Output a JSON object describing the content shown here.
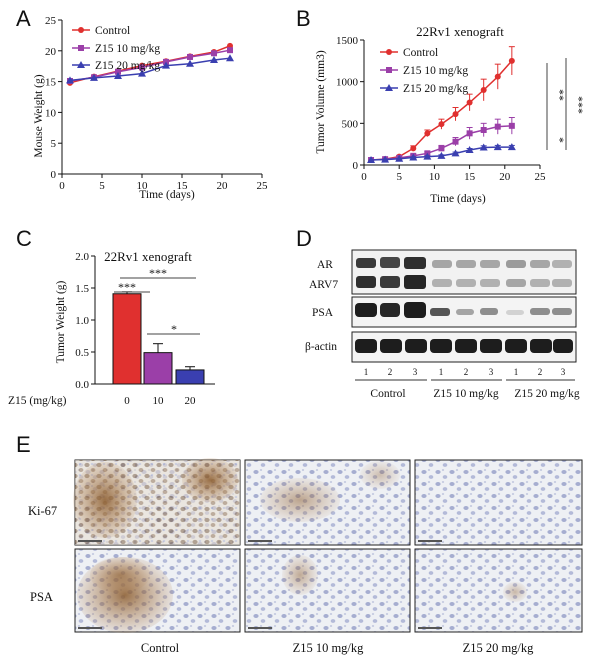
{
  "figure_panels": {
    "A": "A",
    "B": "B",
    "C": "C",
    "D": "D",
    "E": "E"
  },
  "legend": {
    "control": "Control",
    "z15_10": "Z15 10 mg/kg",
    "z15_20": "Z15 20 mg/kg"
  },
  "colors": {
    "control": "#e0302f",
    "z15_10": "#9b3fa8",
    "z15_20": "#3a3fb0"
  },
  "chart_data": [
    {
      "id": "A",
      "type": "line",
      "title": "",
      "xlabel": "Time (days)",
      "ylabel": "Mouse Weight (g)",
      "xlim": [
        0,
        25
      ],
      "ylim": [
        0,
        25
      ],
      "xticks": [
        "0",
        "5",
        "10",
        "15",
        "20",
        "25"
      ],
      "yticks": [
        "0",
        "5",
        "10",
        "15",
        "20",
        "25"
      ],
      "x": [
        1,
        4,
        7,
        10,
        13,
        16,
        19,
        21
      ],
      "series": [
        {
          "name": "Control",
          "marker": "circle",
          "values": [
            14.8,
            15.8,
            16.7,
            17.6,
            18.3,
            19.1,
            19.8,
            20.8
          ]
        },
        {
          "name": "Z15 10 mg/kg",
          "marker": "square",
          "values": [
            15.1,
            15.7,
            16.6,
            17.3,
            18.2,
            19.0,
            19.6,
            20.1
          ]
        },
        {
          "name": "Z15 20 mg/kg",
          "marker": "triangle",
          "values": [
            15.2,
            15.6,
            15.9,
            16.3,
            17.6,
            17.9,
            18.5,
            18.8
          ]
        }
      ]
    },
    {
      "id": "B",
      "type": "line",
      "title": "22Rv1 xenograft",
      "xlabel": "Time (days)",
      "ylabel": "Tumor Volume (mm3)",
      "xlim": [
        0,
        25
      ],
      "ylim": [
        0,
        1500
      ],
      "xticks": [
        "0",
        "5",
        "10",
        "15",
        "20",
        "25"
      ],
      "yticks": [
        "0",
        "500",
        "1000",
        "1500"
      ],
      "x": [
        1,
        3,
        5,
        7,
        9,
        11,
        13,
        15,
        17,
        19,
        21
      ],
      "series": [
        {
          "name": "Control",
          "marker": "circle",
          "values": [
            60,
            70,
            100,
            200,
            380,
            490,
            610,
            750,
            900,
            1060,
            1250
          ],
          "errors": [
            0,
            10,
            15,
            30,
            40,
            60,
            80,
            100,
            130,
            150,
            170
          ]
        },
        {
          "name": "Z15 10 mg/kg",
          "marker": "square",
          "values": [
            60,
            70,
            85,
            110,
            140,
            200,
            280,
            380,
            420,
            460,
            470
          ],
          "errors": [
            0,
            5,
            10,
            15,
            20,
            35,
            50,
            70,
            80,
            90,
            100
          ]
        },
        {
          "name": "Z15 20 mg/kg",
          "marker": "triangle",
          "values": [
            60,
            65,
            75,
            90,
            100,
            110,
            140,
            180,
            210,
            215,
            215
          ],
          "errors": [
            0,
            5,
            5,
            8,
            10,
            12,
            15,
            18,
            20,
            20,
            20
          ]
        }
      ],
      "significance": [
        "**",
        "***",
        "*"
      ]
    },
    {
      "id": "C",
      "type": "bar",
      "title": "22Rv1 xenograft",
      "xlabel": "Z15 (mg/kg)",
      "ylabel": "Tumor Weight (g)",
      "ylim": [
        0,
        2.0
      ],
      "yticks": [
        "0.0",
        "0.5",
        "1.0",
        "1.5",
        "2.0"
      ],
      "categories": [
        "0",
        "10",
        "20"
      ],
      "values": [
        1.41,
        0.49,
        0.22
      ],
      "errors": [
        0.03,
        0.14,
        0.05
      ],
      "significance": [
        "***",
        "***",
        "*"
      ]
    }
  ],
  "western_blot": {
    "row_labels": [
      "AR",
      "ARV7",
      "PSA",
      "β-actin"
    ],
    "lane_numbers": [
      "1",
      "2",
      "3",
      "1",
      "2",
      "3",
      "1",
      "2",
      "3"
    ],
    "group_labels": [
      "Control",
      "Z15 10 mg/kg",
      "Z15 20 mg/kg"
    ]
  },
  "ihc": {
    "row_labels": [
      "Ki-67",
      "PSA"
    ],
    "column_labels": [
      "Control",
      "Z15 10 mg/kg",
      "Z15 20 mg/kg"
    ]
  }
}
